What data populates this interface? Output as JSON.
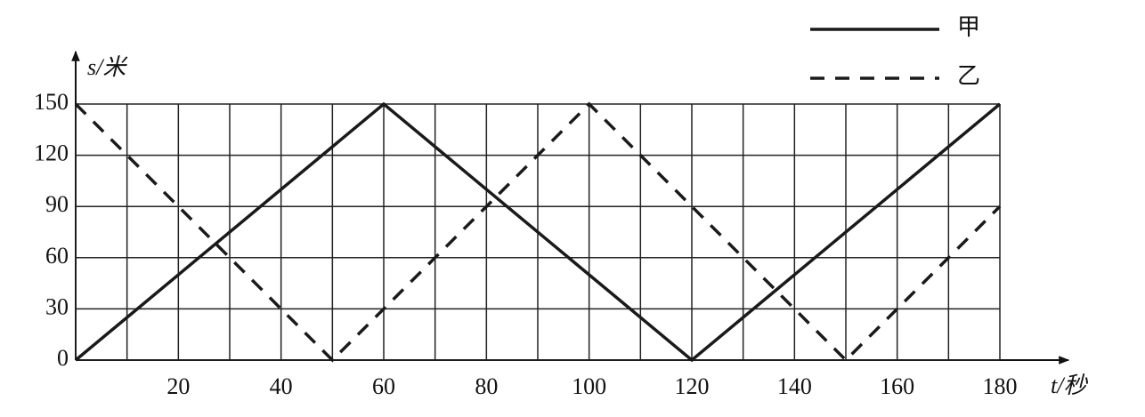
{
  "chart_data": {
    "type": "line",
    "xlabel": "t/秒",
    "ylabel": "s/米",
    "xlim": [
      0,
      180
    ],
    "ylim": [
      0,
      150
    ],
    "xticks": [
      20,
      40,
      60,
      80,
      100,
      120,
      140,
      160,
      180
    ],
    "yticks": [
      0,
      30,
      60,
      90,
      120,
      150
    ],
    "xgrid": [
      0,
      10,
      20,
      30,
      40,
      50,
      60,
      70,
      80,
      90,
      100,
      110,
      120,
      130,
      140,
      150,
      160,
      170,
      180
    ],
    "grid": true,
    "legend": "top-right",
    "series": [
      {
        "name": "甲",
        "color": "#1a1a1a",
        "style": "solid",
        "x": [
          0,
          60,
          120,
          180
        ],
        "values": [
          0,
          150,
          0,
          150
        ]
      },
      {
        "name": "乙",
        "color": "#1a1a1a",
        "style": "dashed",
        "x": [
          0,
          50,
          100,
          150,
          180
        ],
        "values": [
          150,
          0,
          150,
          0,
          90
        ]
      }
    ]
  }
}
